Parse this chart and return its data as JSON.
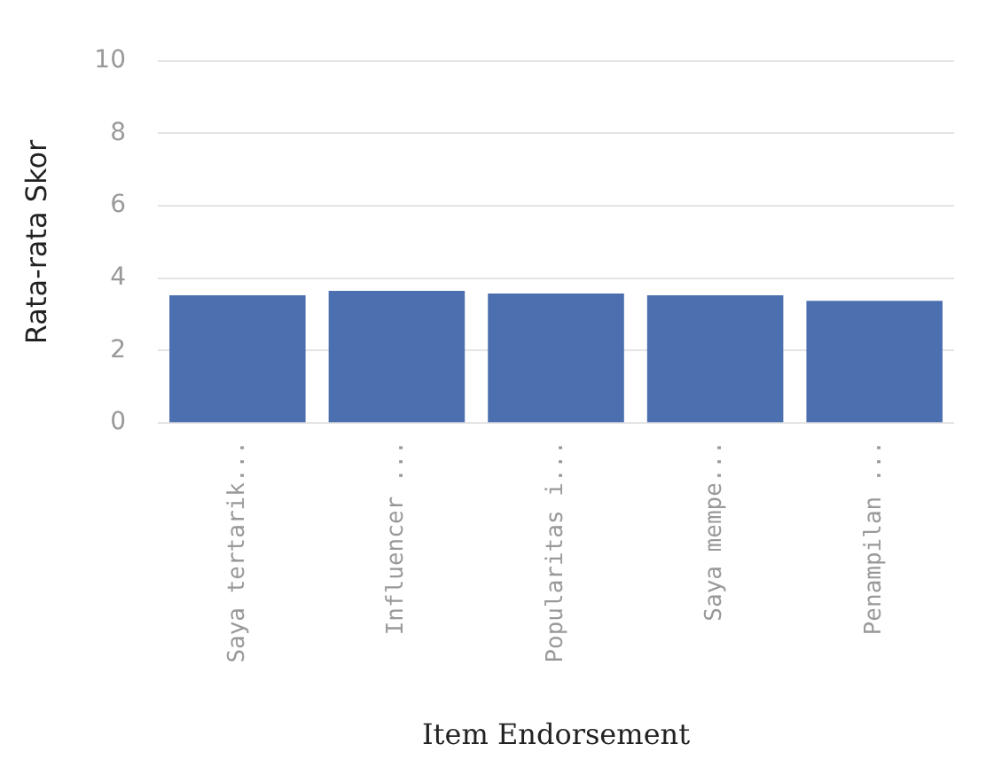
{
  "chart_data": {
    "type": "bar",
    "xlabel": "Item Endorsement",
    "ylabel": "Rata-rata Skor",
    "categories": [
      "Saya tertarik...",
      "Influencer ...",
      "Popularitas i...",
      "Saya mempe...",
      "Penampilan ..."
    ],
    "values": [
      3.53,
      3.65,
      3.58,
      3.53,
      3.38
    ],
    "color": "#4c6faf",
    "ylim": [
      0,
      10
    ],
    "yticks": [
      0,
      2,
      4,
      6,
      8,
      10
    ],
    "grid": "y"
  }
}
